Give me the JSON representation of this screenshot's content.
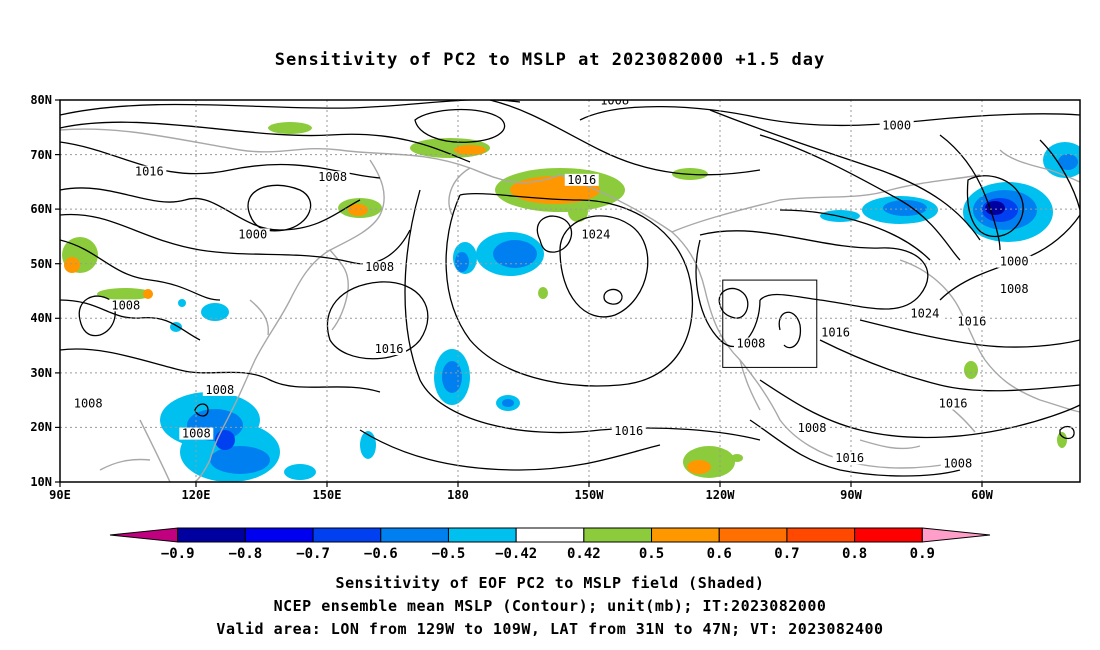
{
  "title": "Sensitivity of PC2 to MSLP at 2023082000 +1.5 day",
  "lat_labels": [
    "80N",
    "70N",
    "60N",
    "50N",
    "40N",
    "30N",
    "20N",
    "10N"
  ],
  "lon_labels": [
    "90E",
    "120E",
    "150E",
    "180",
    "150W",
    "120W",
    "90W",
    "60W"
  ],
  "contour_labels": [
    {
      "text": "1008",
      "lon": -152,
      "lat": 79.5
    },
    {
      "text": "1000",
      "lon": -92,
      "lat": 75
    },
    {
      "text": "1016",
      "lon": 109,
      "lat": 66.5
    },
    {
      "text": "1008",
      "lon": 148,
      "lat": 65.5
    },
    {
      "text": "1016",
      "lon": -159,
      "lat": 65
    },
    {
      "text": "1024",
      "lon": -156,
      "lat": 55
    },
    {
      "text": "1000",
      "lon": 131,
      "lat": 55
    },
    {
      "text": "1008",
      "lon": 158,
      "lat": 49
    },
    {
      "text": "1000",
      "lon": -67,
      "lat": 50
    },
    {
      "text": "1008",
      "lon": -67,
      "lat": 45
    },
    {
      "text": "1008",
      "lon": 104,
      "lat": 42
    },
    {
      "text": "1024",
      "lon": -86,
      "lat": 40.5
    },
    {
      "text": "1016",
      "lon": -76,
      "lat": 39
    },
    {
      "text": "1016",
      "lon": -105,
      "lat": 37
    },
    {
      "text": "1016",
      "lon": 160,
      "lat": 34
    },
    {
      "text": "1008",
      "lon": -123,
      "lat": 35
    },
    {
      "text": "1008",
      "lon": 124,
      "lat": 26.5
    },
    {
      "text": "1008",
      "lon": 96,
      "lat": 24
    },
    {
      "text": "1016",
      "lon": -80,
      "lat": 24
    },
    {
      "text": "1016",
      "lon": -149,
      "lat": 19
    },
    {
      "text": "1008",
      "lon": -110,
      "lat": 19.5
    },
    {
      "text": "1008",
      "lon": 119,
      "lat": 18.5
    },
    {
      "text": "1016",
      "lon": -102,
      "lat": 14
    },
    {
      "text": "1008",
      "lon": -79,
      "lat": 13
    }
  ],
  "valid_box": {
    "lon_min": -129,
    "lon_max": -109,
    "lat_min": 31,
    "lat_max": 47
  },
  "shading_colors": {
    "neg_0.9": "#c0007f",
    "neg_0.8": "#0000a0",
    "neg_0.7": "#0000f0",
    "neg_0.6": "#0040f0",
    "neg_0.5": "#0080f0",
    "neg_0.42": "#00c0f0",
    "neutral": "#ffffff",
    "pos_0.42": "#8ccc3c",
    "pos_0.5": "#ff9800",
    "pos_0.6": "#ff7000",
    "pos_0.7": "#ff4800",
    "pos_0.8": "#ff0000",
    "pos_0.9": "#ff9ec8"
  },
  "colorbar": {
    "colors": [
      "#c0007f",
      "#0000a0",
      "#0000f0",
      "#0040f0",
      "#0080f0",
      "#00c0f0",
      "#ffffff",
      "#8ccc3c",
      "#ff9800",
      "#ff7000",
      "#ff4800",
      "#ff0000",
      "#ff9ec8"
    ],
    "labels": [
      "−0.9",
      "−0.8",
      "−0.7",
      "−0.6",
      "−0.5",
      "−0.42",
      "0.42",
      "0.5",
      "0.6",
      "0.7",
      "0.8",
      "0.9"
    ]
  },
  "caption": {
    "line1": "Sensitivity of EOF PC2 to MSLP field (Shaded)",
    "line2": "NCEP ensemble mean MSLP (Contour); unit(mb); IT:2023082000",
    "line3": "Valid area: LON from 129W to 109W, LAT from 31N to 47N; VT: 2023082400"
  }
}
